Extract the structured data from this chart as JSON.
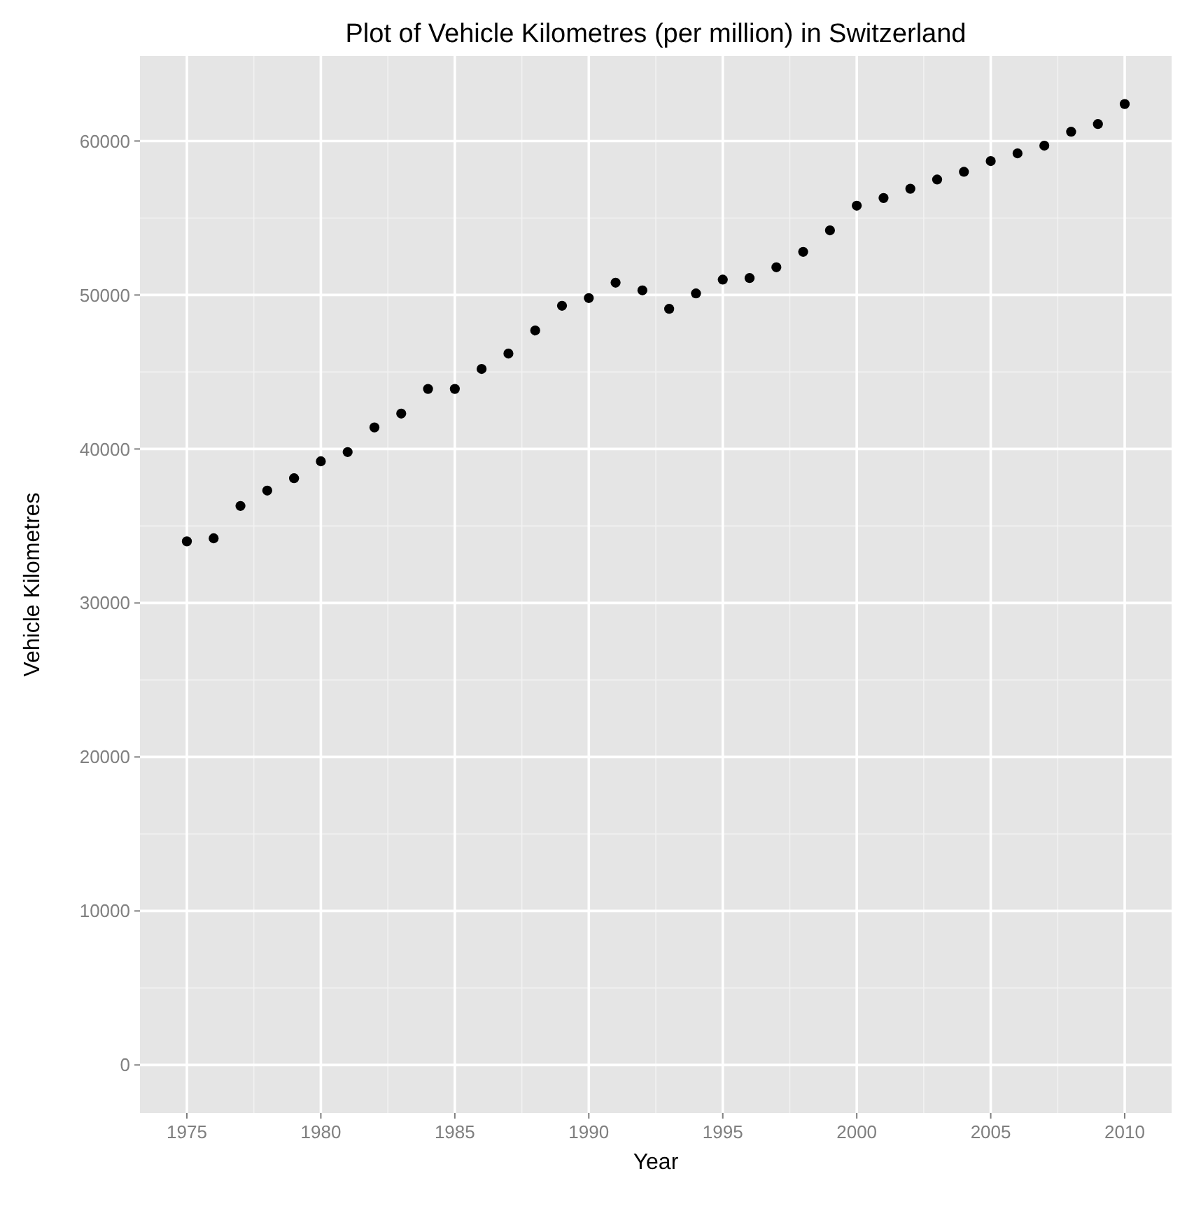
{
  "chart_data": {
    "type": "scatter",
    "title": "Plot of Vehicle Kilometres (per million) in Switzerland",
    "xlabel": "Year",
    "ylabel": "Vehicle Kilometres",
    "x": [
      1975,
      1976,
      1977,
      1978,
      1979,
      1980,
      1981,
      1982,
      1983,
      1984,
      1985,
      1986,
      1987,
      1988,
      1989,
      1990,
      1991,
      1992,
      1993,
      1994,
      1995,
      1996,
      1997,
      1998,
      1999,
      2000,
      2001,
      2002,
      2003,
      2004,
      2005,
      2006,
      2007,
      2008,
      2009,
      2010
    ],
    "values": [
      34000,
      34200,
      36300,
      37300,
      38100,
      39200,
      39800,
      41400,
      42300,
      43900,
      43900,
      45200,
      46200,
      47700,
      49300,
      49800,
      50800,
      50300,
      49100,
      50100,
      51000,
      51100,
      51800,
      52800,
      54200,
      55800,
      56300,
      56900,
      57500,
      58000,
      58700,
      59200,
      59700,
      60600,
      61100,
      62400
    ],
    "color": "#000000",
    "marker": "circle",
    "grid": true,
    "xlim": [
      1973.25,
      2011.75
    ],
    "xticks": [
      1975,
      1980,
      1985,
      1990,
      1995,
      2000,
      2005,
      2010
    ],
    "ylim": [
      -3120,
      65520
    ],
    "yticks": [
      0,
      10000,
      20000,
      30000,
      40000,
      50000,
      60000
    ]
  }
}
